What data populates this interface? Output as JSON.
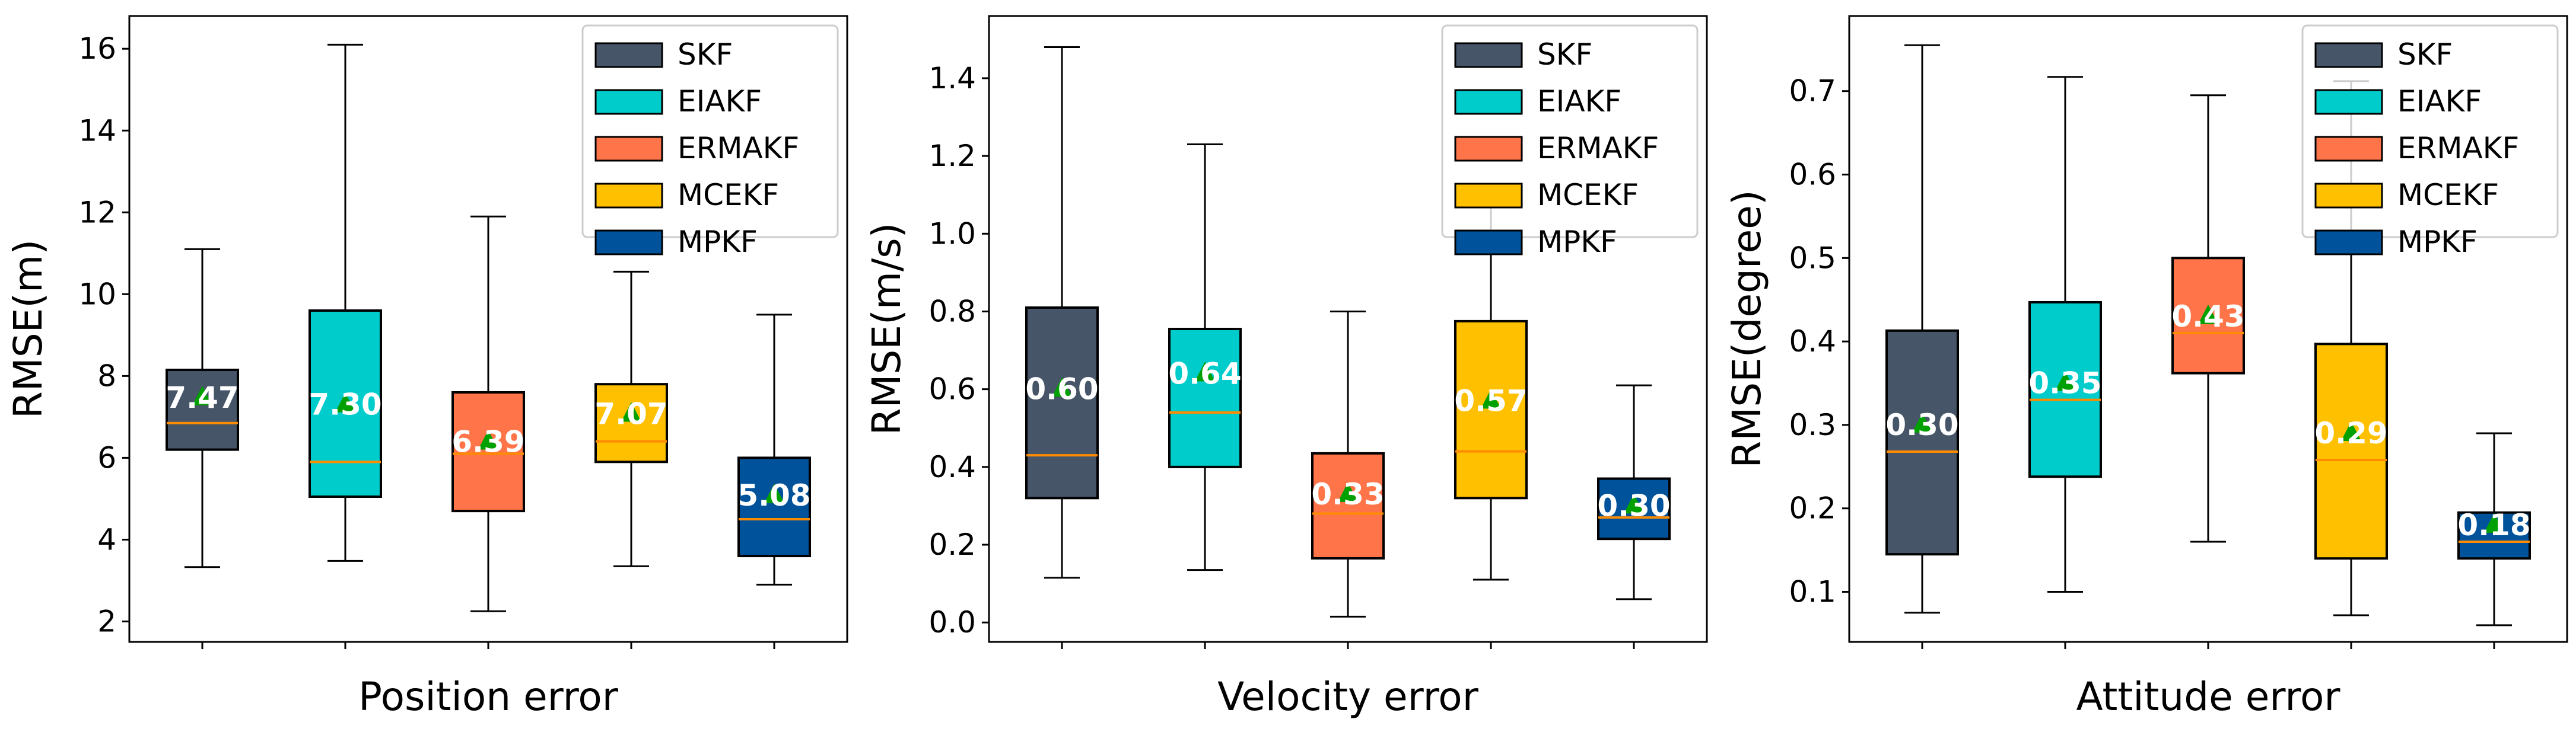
{
  "chart_data": [
    {
      "type": "box",
      "xlabel": "Position error",
      "ylabel": "RMSE(m)",
      "ylim": [
        1.5,
        16.8
      ],
      "yticks": [
        2,
        4,
        6,
        8,
        10,
        12,
        14,
        16
      ],
      "legend_position": "upper-right",
      "series": [
        {
          "name": "SKF",
          "color": "#475569",
          "whisker_low": 3.33,
          "q1": 6.2,
          "median": 6.85,
          "q3": 8.15,
          "whisker_high": 11.1,
          "mean": 7.47,
          "mean_label": "7.47"
        },
        {
          "name": "EIAKF",
          "color": "#00CCCC",
          "whisker_low": 3.48,
          "q1": 5.05,
          "median": 5.9,
          "q3": 9.6,
          "whisker_high": 16.1,
          "mean": 7.3,
          "mean_label": "7.30"
        },
        {
          "name": "ERMAKF",
          "color": "#FF7448",
          "whisker_low": 2.25,
          "q1": 4.7,
          "median": 6.1,
          "q3": 7.6,
          "whisker_high": 11.9,
          "mean": 6.39,
          "mean_label": "6.39"
        },
        {
          "name": "MCEKF",
          "color": "#FFC000",
          "whisker_low": 3.35,
          "q1": 5.9,
          "median": 6.4,
          "q3": 7.8,
          "whisker_high": 10.55,
          "mean": 7.07,
          "mean_label": "7.07"
        },
        {
          "name": "MPKF",
          "color": "#00529B",
          "whisker_low": 2.9,
          "q1": 3.6,
          "median": 4.5,
          "q3": 6.0,
          "whisker_high": 9.5,
          "mean": 5.08,
          "mean_label": "5.08"
        }
      ]
    },
    {
      "type": "box",
      "xlabel": "Velocity error",
      "ylabel": "RMSE(m/s)",
      "ylim": [
        -0.05,
        1.56
      ],
      "yticks": [
        0.0,
        0.2,
        0.4,
        0.6,
        0.8,
        1.0,
        1.2,
        1.4
      ],
      "legend_position": "upper-right",
      "series": [
        {
          "name": "SKF",
          "color": "#475569",
          "whisker_low": 0.115,
          "q1": 0.32,
          "median": 0.43,
          "q3": 0.81,
          "whisker_high": 1.48,
          "mean": 0.6,
          "mean_label": "0.60"
        },
        {
          "name": "EIAKF",
          "color": "#00CCCC",
          "whisker_low": 0.135,
          "q1": 0.4,
          "median": 0.54,
          "q3": 0.755,
          "whisker_high": 1.23,
          "mean": 0.64,
          "mean_label": "0.64"
        },
        {
          "name": "ERMAKF",
          "color": "#FF7448",
          "whisker_low": 0.015,
          "q1": 0.165,
          "median": 0.28,
          "q3": 0.435,
          "whisker_high": 0.8,
          "mean": 0.33,
          "mean_label": "0.33"
        },
        {
          "name": "MCEKF",
          "color": "#FFC000",
          "whisker_low": 0.11,
          "q1": 0.32,
          "median": 0.44,
          "q3": 0.775,
          "whisker_high": 1.07,
          "mean": 0.57,
          "mean_label": "0.57"
        },
        {
          "name": "MPKF",
          "color": "#00529B",
          "whisker_low": 0.06,
          "q1": 0.215,
          "median": 0.27,
          "q3": 0.37,
          "whisker_high": 0.61,
          "mean": 0.3,
          "mean_label": "0.30"
        }
      ]
    },
    {
      "type": "box",
      "xlabel": "Attitude error",
      "ylabel": "RMSE(degree)",
      "ylim": [
        0.04,
        0.79
      ],
      "yticks": [
        0.1,
        0.2,
        0.3,
        0.4,
        0.5,
        0.6,
        0.7
      ],
      "legend_position": "upper-right",
      "series": [
        {
          "name": "SKF",
          "color": "#475569",
          "whisker_low": 0.075,
          "q1": 0.145,
          "median": 0.268,
          "q3": 0.413,
          "whisker_high": 0.755,
          "mean": 0.3,
          "mean_label": "0.30"
        },
        {
          "name": "EIAKF",
          "color": "#00CCCC",
          "whisker_low": 0.1,
          "q1": 0.238,
          "median": 0.33,
          "q3": 0.447,
          "whisker_high": 0.717,
          "mean": 0.35,
          "mean_label": "0.35"
        },
        {
          "name": "ERMAKF",
          "color": "#FF7448",
          "whisker_low": 0.16,
          "q1": 0.362,
          "median": 0.41,
          "q3": 0.5,
          "whisker_high": 0.695,
          "mean": 0.43,
          "mean_label": "0.43"
        },
        {
          "name": "MCEKF",
          "color": "#FFC000",
          "whisker_low": 0.072,
          "q1": 0.14,
          "median": 0.258,
          "q3": 0.397,
          "whisker_high": 0.712,
          "mean": 0.29,
          "mean_label": "0.29"
        },
        {
          "name": "MPKF",
          "color": "#00529B",
          "whisker_low": 0.06,
          "q1": 0.14,
          "median": 0.16,
          "q3": 0.195,
          "whisker_high": 0.29,
          "mean": 0.18,
          "mean_label": "0.18"
        }
      ]
    }
  ],
  "colors": {
    "median_line": "#FF8C00",
    "mean_marker": "#00A000",
    "mean_label_text": "#FFFFFF",
    "box_edge": "#000000"
  }
}
